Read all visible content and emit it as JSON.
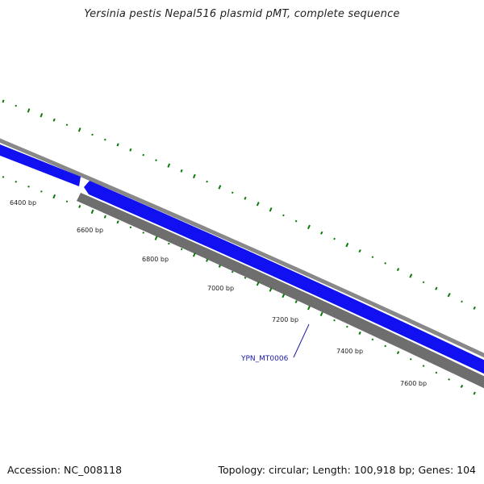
{
  "title": "Yersinia pestis Nepal516 plasmid pMT, complete sequence",
  "footer": {
    "accession": "Accession: NC_008118",
    "summary": "Topology: circular; Length: 100,918 bp; Genes: 104"
  },
  "colors": {
    "forward_gene": "#1010f0",
    "reverse_gene": "#6e6e6e",
    "backbone": "#888888",
    "gc_ticks": "#0a7a0a",
    "gene_label": "#1a1aa0"
  },
  "scale_labels": [
    "6400 bp",
    "6600 bp",
    "6800 bp",
    "7000 bp",
    "7200 bp",
    "7400 bp",
    "7600 bp"
  ],
  "gene_labels": [
    "YPN_MT0006"
  ]
}
